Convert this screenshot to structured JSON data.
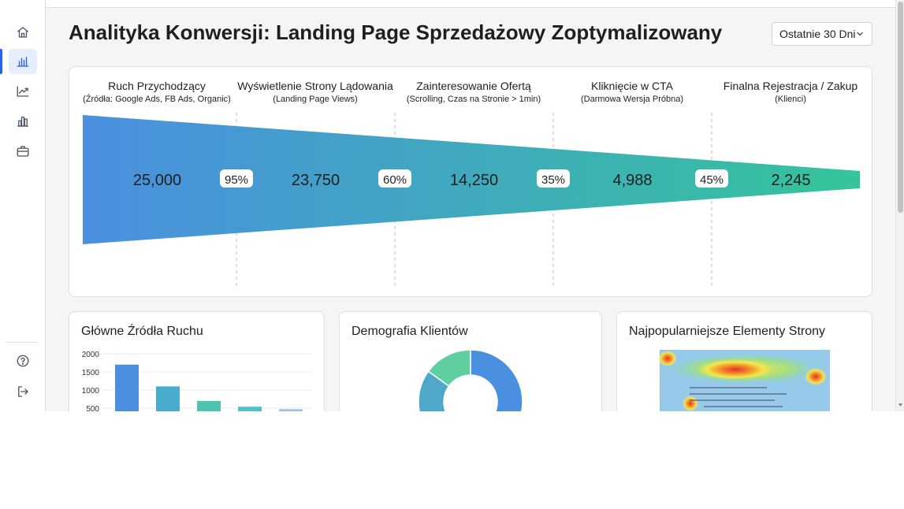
{
  "sidebar": {
    "items": [
      {
        "name": "home-icon"
      },
      {
        "name": "bar-chart-icon",
        "active": true
      },
      {
        "name": "trending-up-icon"
      },
      {
        "name": "reports-icon"
      },
      {
        "name": "briefcase-icon"
      }
    ],
    "bottom": [
      {
        "name": "help-icon"
      },
      {
        "name": "logout-icon"
      }
    ]
  },
  "header": {
    "title": "Analityka Konwersji: Landing Page Sprzedażowy Zoptymalizowany",
    "date_range": "Ostatnie 30 Dni"
  },
  "funnel": {
    "stages": [
      {
        "title": "Ruch Przychodzący",
        "subtitle": "(Źródła: Google Ads, FB Ads, Organic)",
        "value": "25,000"
      },
      {
        "title": "Wyświetlenie Strony Lądowania",
        "subtitle": "(Landing Page Views)",
        "value": "23,750"
      },
      {
        "title": "Zainteresowanie Ofertą",
        "subtitle": "(Scrolling, Czas na Stronie > 1min)",
        "value": "14,250"
      },
      {
        "title": "Kliknięcie w CTA",
        "subtitle": "(Darmowa Wersja Próbna)",
        "value": "4,988"
      },
      {
        "title": "Finalna Rejestracja / Zakup",
        "subtitle": "(Klienci)",
        "value": "2,245"
      }
    ],
    "conversion_rates": [
      "95%",
      "60%",
      "35%",
      "45%"
    ],
    "colors": {
      "start": "#4a8fe0",
      "end": "#35c49a"
    }
  },
  "cards": {
    "sources_title": "Główne Źródła Ruchu",
    "demographics_title": "Demografia Klientów",
    "popular_title": "Najpopularniejsze Elementy Strony"
  },
  "chart_data": [
    {
      "type": "bar",
      "title": "Główne Źródła Ruchu",
      "yticks": [
        "2000",
        "1500",
        "1000",
        "500"
      ],
      "ylim": [
        0,
        2000
      ],
      "values": [
        1700,
        1100,
        700,
        540,
        470
      ],
      "colors": [
        "#4a8fe0",
        "#4aaccc",
        "#4fc3b1",
        "#52c0c9",
        "#9fbfe2"
      ]
    },
    {
      "type": "pie",
      "title": "Demografia Klientów",
      "values": [
        65,
        20,
        15
      ],
      "colors": [
        "#4a8fe0",
        "#4fa8c9",
        "#5fcf9f"
      ]
    }
  ],
  "heatmap": {
    "title": "Najpopularniejsze Elementy Strony"
  }
}
